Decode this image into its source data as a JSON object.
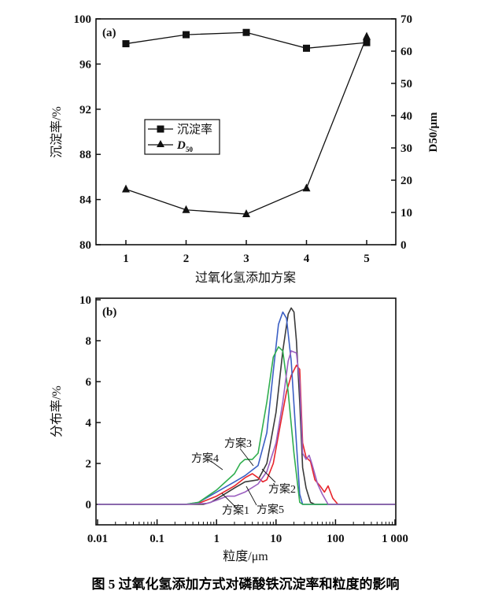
{
  "chart_data": [
    {
      "type": "line",
      "panel_label": "(a)",
      "xlabel": "过氧化氢添加方案",
      "ylabel": "沉淀率/%",
      "y2label": "D50/μm",
      "categories": [
        "1",
        "2",
        "3",
        "4",
        "5"
      ],
      "ylim": [
        80,
        100
      ],
      "y2lim": [
        0,
        70
      ],
      "yticks": [
        80,
        84,
        88,
        92,
        96,
        100
      ],
      "y2ticks": [
        0,
        10,
        20,
        30,
        40,
        50,
        60,
        70
      ],
      "series": [
        {
          "name": "沉淀率",
          "axis": "left",
          "marker": "square",
          "values": [
            97.8,
            98.6,
            98.8,
            97.4,
            97.9
          ]
        },
        {
          "name": "D",
          "subscript": "50",
          "axis": "right",
          "marker": "triangle",
          "values": [
            17.2,
            10.8,
            9.5,
            17.5,
            64.5
          ]
        }
      ],
      "legend": "center-left"
    },
    {
      "type": "line",
      "panel_label": "(b)",
      "xlabel": "粒度/μm",
      "ylabel": "分布率/%",
      "xscale": "log",
      "xlim": [
        0.01,
        1000
      ],
      "ylim": [
        -1,
        10
      ],
      "xticks": [
        "0.01",
        "0.1",
        "1",
        "10",
        "100",
        "1 000"
      ],
      "yticks": [
        0,
        2,
        4,
        6,
        8,
        10
      ],
      "series": [
        {
          "name": "方案1",
          "color": "#3a3a3a",
          "points": [
            [
              0.01,
              0
            ],
            [
              0.6,
              0
            ],
            [
              0.8,
              0.1
            ],
            [
              1.2,
              0.4
            ],
            [
              2,
              0.8
            ],
            [
              3,
              1.1
            ],
            [
              5,
              1.2
            ],
            [
              7,
              2
            ],
            [
              10,
              4.5
            ],
            [
              13,
              7.5
            ],
            [
              16,
              9.3
            ],
            [
              18,
              9.6
            ],
            [
              20,
              9.4
            ],
            [
              22,
              8
            ],
            [
              25,
              5
            ],
            [
              28,
              1.8
            ],
            [
              32,
              0.8
            ],
            [
              38,
              0.1
            ],
            [
              45,
              0
            ],
            [
              1000,
              0
            ]
          ]
        },
        {
          "name": "方案2",
          "color": "#e8242b",
          "points": [
            [
              0.01,
              0
            ],
            [
              0.3,
              0
            ],
            [
              0.5,
              0.05
            ],
            [
              1,
              0.4
            ],
            [
              2,
              0.9
            ],
            [
              3,
              1.3
            ],
            [
              4,
              1.5
            ],
            [
              5,
              1.3
            ],
            [
              6,
              1.1
            ],
            [
              7,
              1.2
            ],
            [
              9,
              2
            ],
            [
              12,
              4
            ],
            [
              15,
              5.5
            ],
            [
              18,
              6.3
            ],
            [
              22,
              6.8
            ],
            [
              25,
              6.6
            ],
            [
              28,
              3
            ],
            [
              32,
              2.3
            ],
            [
              38,
              2.1
            ],
            [
              45,
              1.2
            ],
            [
              55,
              0.9
            ],
            [
              65,
              0.6
            ],
            [
              75,
              0.9
            ],
            [
              90,
              0.3
            ],
            [
              110,
              0
            ],
            [
              1000,
              0
            ]
          ]
        },
        {
          "name": "方案3",
          "color": "#3b5fc4",
          "points": [
            [
              0.01,
              0
            ],
            [
              0.3,
              0
            ],
            [
              0.5,
              0.1
            ],
            [
              1,
              0.6
            ],
            [
              2,
              1.1
            ],
            [
              3,
              1.4
            ],
            [
              5,
              1.9
            ],
            [
              7,
              3.5
            ],
            [
              9,
              6.5
            ],
            [
              11,
              8.8
            ],
            [
              13,
              9.4
            ],
            [
              15,
              9.1
            ],
            [
              18,
              7
            ],
            [
              22,
              3
            ],
            [
              25,
              0.5
            ],
            [
              28,
              0
            ],
            [
              1000,
              0
            ]
          ]
        },
        {
          "name": "方案4",
          "color": "#2fae4e",
          "points": [
            [
              0.01,
              0
            ],
            [
              0.3,
              0
            ],
            [
              0.5,
              0.1
            ],
            [
              1,
              0.7
            ],
            [
              2,
              1.5
            ],
            [
              2.5,
              2
            ],
            [
              3,
              2.2
            ],
            [
              4,
              2.2
            ],
            [
              5,
              2.5
            ],
            [
              7,
              5
            ],
            [
              9,
              7.2
            ],
            [
              11,
              7.7
            ],
            [
              13,
              7.5
            ],
            [
              16,
              5.5
            ],
            [
              20,
              2.5
            ],
            [
              25,
              0.1
            ],
            [
              28,
              0
            ],
            [
              1000,
              0
            ]
          ]
        },
        {
          "name": "方案5",
          "color": "#9b5fc0",
          "points": [
            [
              0.01,
              0
            ],
            [
              0.3,
              0
            ],
            [
              0.7,
              0.05
            ],
            [
              1,
              0.2
            ],
            [
              1.5,
              0.4
            ],
            [
              2,
              0.4
            ],
            [
              3,
              0.6
            ],
            [
              5,
              1
            ],
            [
              7,
              1.6
            ],
            [
              10,
              3
            ],
            [
              13,
              5
            ],
            [
              16,
              7
            ],
            [
              18,
              7.5
            ],
            [
              22,
              7.4
            ],
            [
              25,
              6
            ],
            [
              28,
              2.5
            ],
            [
              32,
              2.2
            ],
            [
              36,
              2.4
            ],
            [
              40,
              2
            ],
            [
              50,
              1
            ],
            [
              60,
              0.5
            ],
            [
              75,
              0
            ],
            [
              1000,
              0
            ]
          ]
        }
      ]
    }
  ],
  "caption": "图 5   过氧化氢添加方式对磷酸铁沉淀率和粒度的影响"
}
